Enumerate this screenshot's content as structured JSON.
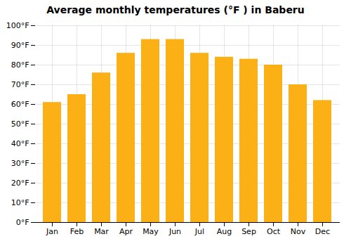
{
  "chart_data": {
    "type": "bar",
    "title": "Average monthly temperatures (°F ) in Baberu",
    "categories": [
      "Jan",
      "Feb",
      "Mar",
      "Apr",
      "May",
      "Jun",
      "Jul",
      "Aug",
      "Sep",
      "Oct",
      "Nov",
      "Dec"
    ],
    "values": [
      61,
      65,
      76,
      86,
      93,
      93,
      86,
      84,
      83,
      80,
      70,
      62
    ],
    "color": "#FBB116",
    "ylim": [
      0,
      100
    ],
    "yticks": [
      {
        "value": 0,
        "label": "0°F"
      },
      {
        "value": 10,
        "label": "10°F"
      },
      {
        "value": 20,
        "label": "20°F"
      },
      {
        "value": 30,
        "label": "30°F"
      },
      {
        "value": 40,
        "label": "40°F"
      },
      {
        "value": 50,
        "label": "50°F"
      },
      {
        "value": 60,
        "label": "60°F"
      },
      {
        "value": 70,
        "label": "70°F"
      },
      {
        "value": 80,
        "label": "80°F"
      },
      {
        "value": 90,
        "label": "90°F"
      },
      {
        "value": 100,
        "label": "100°F"
      }
    ],
    "grid": true
  }
}
